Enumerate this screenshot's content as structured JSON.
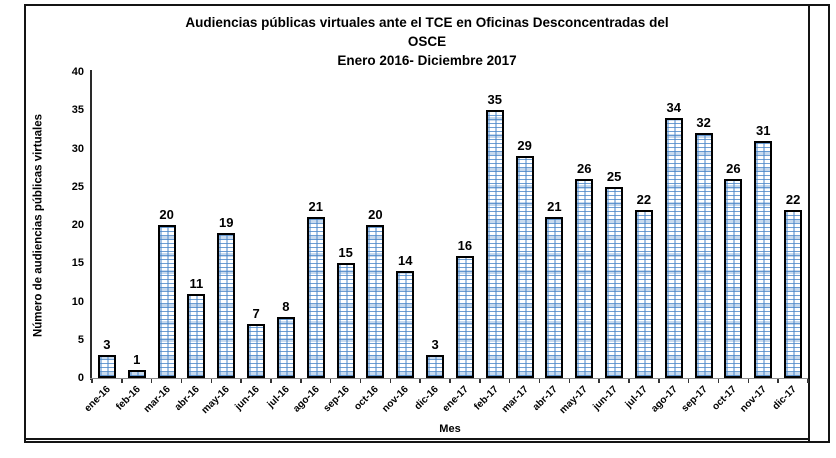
{
  "chart_data": {
    "type": "bar",
    "title": "Audiencias públicas virtuales ante el TCE en Oficinas Desconcentradas del OSCE",
    "title_lines": [
      "Audiencias públicas virtuales ante el TCE en Oficinas Desconcentradas del",
      "OSCE"
    ],
    "subtitle": "Enero 2016- Diciembre 2017",
    "xlabel": "Mes",
    "ylabel": "Número de audiencias públicas virtuales",
    "ylim": [
      0,
      40
    ],
    "yticks": [
      0,
      5,
      10,
      15,
      20,
      25,
      30,
      35,
      40
    ],
    "grid": false,
    "legend": "none",
    "data_labels": true,
    "bar_border_color": "#000000",
    "pattern_color": "#4a86c8",
    "frame_color": "#141414",
    "categories": [
      "ene-16",
      "feb-16",
      "mar-16",
      "abr-16",
      "may-16",
      "jun-16",
      "jul-16",
      "ago-16",
      "sep-16",
      "oct-16",
      "nov-16",
      "dic-16",
      "ene-17",
      "feb-17",
      "mar-17",
      "abr-17",
      "may-17",
      "jun-17",
      "jul-17",
      "ago-17",
      "sep-17",
      "oct-17",
      "nov-17",
      "dic-17"
    ],
    "values": [
      3,
      1,
      20,
      11,
      19,
      7,
      8,
      21,
      15,
      20,
      14,
      3,
      16,
      35,
      29,
      21,
      26,
      25,
      22,
      34,
      32,
      26,
      31,
      22
    ]
  }
}
